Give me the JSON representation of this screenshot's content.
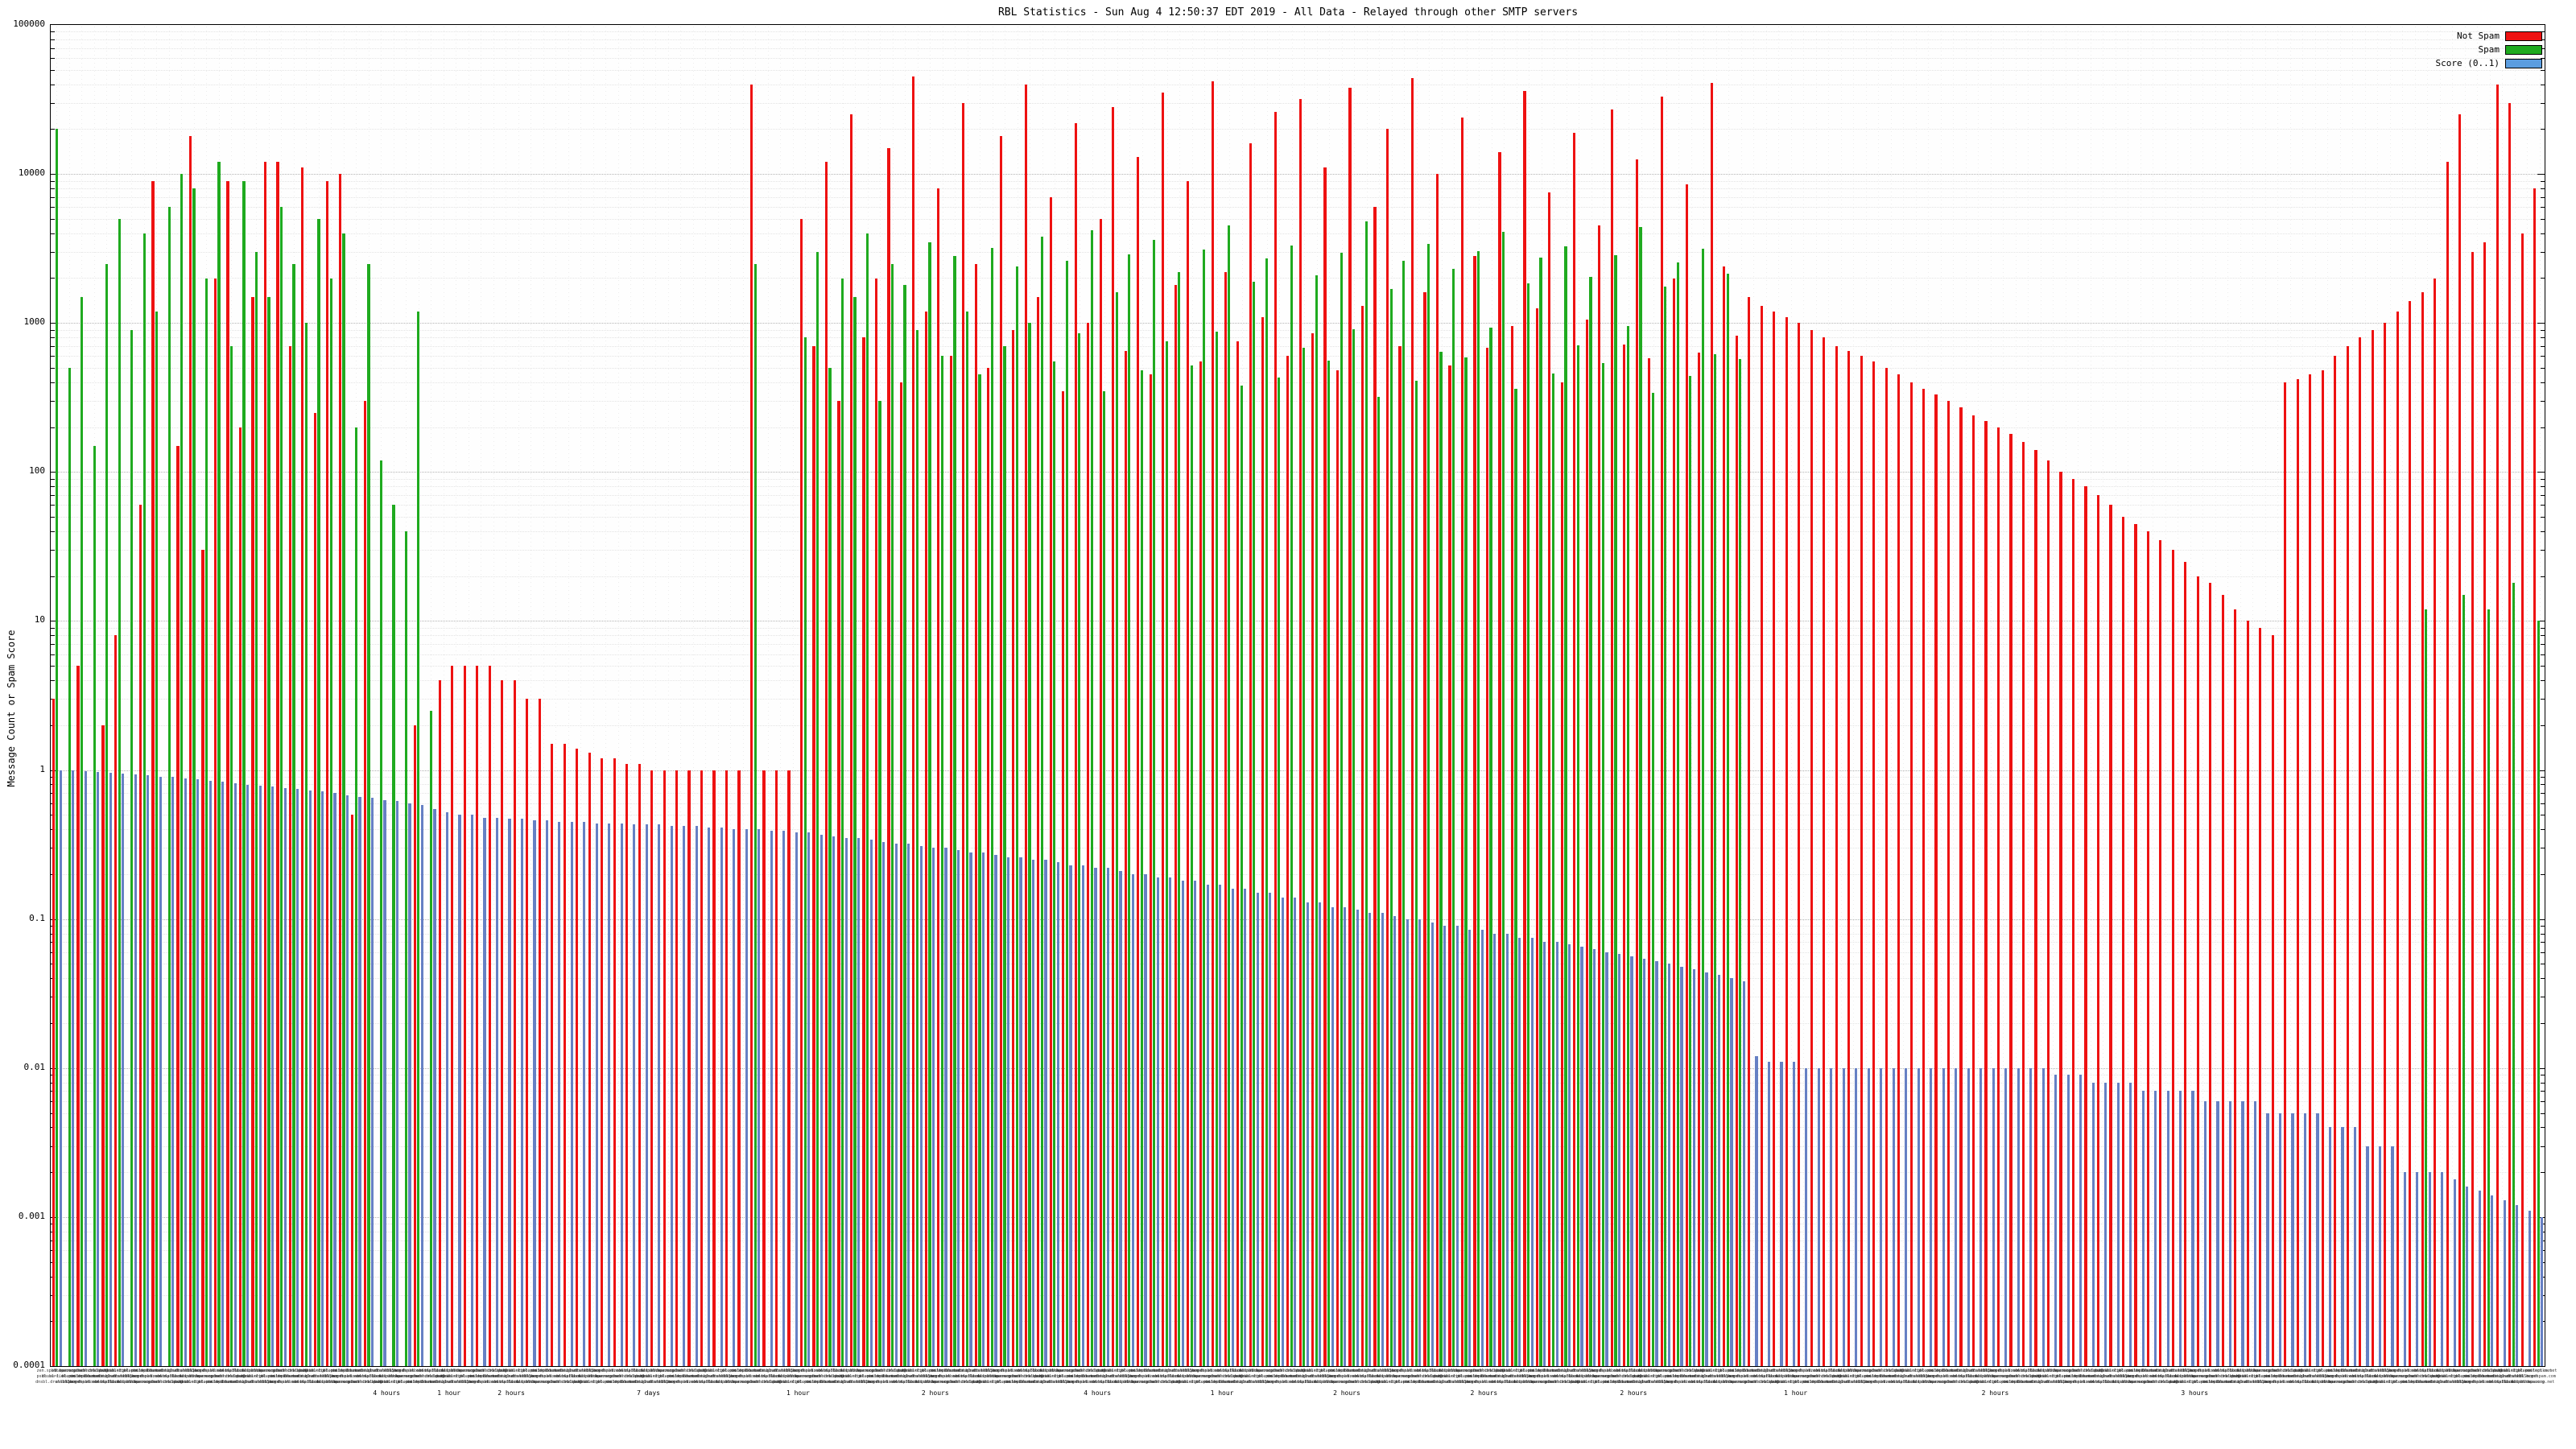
{
  "chart_data": {
    "type": "bar",
    "title": "RBL Statistics - Sun Aug 4 12:50:37 EDT 2019 - All Data - Relayed through other SMTP servers",
    "xlabel": "",
    "ylabel": "Message Count or Spam Score",
    "yscale": "log",
    "ylim": [
      0.0001,
      100000
    ],
    "grid": true,
    "legend_position": "top-right",
    "y_ticks": [
      "100000",
      "10000",
      "1000",
      "100",
      "10",
      "1",
      "0.1",
      "0.01",
      "0.001",
      "0.0001"
    ],
    "colors": {
      "not_spam": "#ee1111",
      "spam": "#1faa1f",
      "score": "#6680c4"
    },
    "legend": [
      {
        "label": "Not Spam",
        "color": "#ee1111"
      },
      {
        "label": "Spam",
        "color": "#1faa1f"
      },
      {
        "label": "Score (0..1)",
        "color": "#5b9de0"
      }
    ],
    "x_tick_labels_note": "hundreds of RBL hostname tick labels, rendered too small to be legible in source image",
    "x_tick_label_samples": [
      "zen.spamhaus.org",
      "bl.spamcop.net",
      "b.barracudacentral.org",
      "dnsbl.sorbs.net",
      "cbl.abuseat.org",
      "psbl.surriel.com",
      "dnsbl-1.uceprotect.net",
      "bl.mailspike.net",
      "ix.dnsbl.manitu.net",
      "truncate.gbudb.net",
      "dnsbl.dronebl.org",
      "all.s5h.net",
      "bl.nordspam.com",
      "spam.dnsbl.anonmails.de",
      "dnsbl.spfbl.net",
      "bl.blocklist.de"
    ],
    "x_period_labels": [
      {
        "pos": 0.135,
        "text": "4 hours"
      },
      {
        "pos": 0.16,
        "text": "1 hour"
      },
      {
        "pos": 0.185,
        "text": "2 hours"
      },
      {
        "pos": 0.24,
        "text": "7 days"
      },
      {
        "pos": 0.3,
        "text": "1 hour"
      },
      {
        "pos": 0.355,
        "text": "2 hours"
      },
      {
        "pos": 0.42,
        "text": "4 hours"
      },
      {
        "pos": 0.47,
        "text": "1 hour"
      },
      {
        "pos": 0.52,
        "text": "2 hours"
      },
      {
        "pos": 0.575,
        "text": "2 hours"
      },
      {
        "pos": 0.635,
        "text": "2 hours"
      },
      {
        "pos": 0.7,
        "text": "1 hour"
      },
      {
        "pos": 0.78,
        "text": "2 hours"
      },
      {
        "pos": 0.86,
        "text": "3 hours"
      }
    ],
    "series": [
      {
        "name": "Not Spam",
        "color_key": "not_spam",
        "values": [
          3,
          0,
          5,
          0,
          2,
          8,
          0,
          60,
          9000,
          0,
          150,
          18000,
          30,
          2000,
          9000,
          200,
          1500,
          12000,
          12000,
          700,
          11000,
          250,
          9000,
          10000,
          0.5,
          300,
          0,
          0,
          0,
          2,
          0,
          4,
          5,
          5,
          5,
          5,
          4,
          4,
          3,
          3,
          1.5,
          1.5,
          1.4,
          1.3,
          1.2,
          1.2,
          1.1,
          1.1,
          1,
          1,
          1,
          1,
          1,
          1,
          1,
          1,
          40000,
          1,
          1,
          1,
          5000,
          700,
          12000,
          300,
          25000,
          800,
          2000,
          15000,
          400,
          45000,
          1200,
          8000,
          600,
          30000,
          2500,
          500,
          18000,
          900,
          40000,
          1500,
          7000,
          350,
          22000,
          1000,
          5000,
          28000,
          650,
          13000,
          450,
          35000,
          1800,
          9000,
          550,
          42000,
          2200,
          750,
          16000,
          1100,
          26000,
          600,
          32000,
          850,
          11000,
          480,
          38000,
          1300,
          6000,
          20000,
          700,
          44000,
          1600,
          10000,
          520,
          24000,
          2800,
          680,
          14000,
          950,
          36000,
          1250,
          7500,
          400,
          19000,
          1050,
          4500,
          27000,
          720,
          12500,
          580,
          33000,
          2000,
          8500,
          630,
          41000,
          2400,
          820,
          1500,
          1300,
          1200,
          1100,
          1000,
          900,
          800,
          700,
          650,
          600,
          550,
          500,
          450,
          400,
          360,
          330,
          300,
          270,
          240,
          220,
          200,
          180,
          160,
          140,
          120,
          100,
          90,
          80,
          70,
          60,
          50,
          45,
          40,
          35,
          30,
          25,
          20,
          18,
          15,
          12,
          10,
          9,
          8,
          400,
          420,
          450,
          480,
          600,
          700,
          800,
          900,
          1000,
          1200,
          1400,
          1600,
          2000,
          12000,
          25000,
          3000,
          3500,
          40000,
          30000,
          4000,
          8000
        ]
      },
      {
        "name": "Spam",
        "color_key": "spam",
        "values": [
          20000,
          500,
          1500,
          150,
          2500,
          5000,
          900,
          4000,
          1200,
          6000,
          10000,
          8000,
          2000,
          12000,
          700,
          9000,
          3000,
          1500,
          6000,
          2500,
          1000,
          5000,
          2000,
          4000,
          200,
          2500,
          120,
          60,
          40,
          1200,
          2.5,
          0,
          0,
          0,
          0,
          0,
          0,
          0,
          0,
          0,
          0,
          0,
          0,
          0,
          0,
          0,
          0,
          0,
          0,
          0,
          0,
          0,
          0,
          0,
          0,
          0,
          2500,
          0,
          0,
          0,
          800,
          3000,
          500,
          2000,
          1500,
          4000,
          300,
          2500,
          1800,
          900,
          3500,
          600,
          2800,
          1200,
          450,
          3200,
          700,
          2400,
          1000,
          3800,
          550,
          2600,
          850,
          4200,
          350,
          1600,
          2900,
          480,
          3600,
          750,
          2200,
          520,
          3100,
          880,
          4500,
          380,
          1900,
          2700,
          430,
          3300,
          680,
          2100,
          560,
          2950,
          910,
          4800,
          320,
          1700,
          2600,
          410,
          3400,
          640,
          2300,
          590,
          3050,
          930,
          4100,
          360,
          1850,
          2750,
          460,
          3250,
          710,
          2050,
          540,
          2850,
          960,
          4400,
          340,
          1750,
          2550,
          440,
          3150,
          620,
          2150,
          570,
          0,
          0,
          0,
          0,
          0,
          0,
          0,
          0,
          0,
          0,
          0,
          0,
          0,
          0,
          0,
          0,
          0,
          0,
          0,
          0,
          0,
          0,
          0,
          0,
          0,
          0,
          0,
          0,
          0,
          0,
          0,
          0,
          0,
          0,
          0,
          0,
          0,
          0,
          0,
          0,
          0,
          0,
          0,
          0,
          0,
          0,
          0,
          0,
          0,
          0,
          0,
          0,
          0,
          0,
          12,
          0,
          0,
          15,
          0,
          12,
          0,
          18,
          0,
          10
        ]
      },
      {
        "name": "Score (0..1)",
        "color_key": "score",
        "values": [
          1.0,
          1.0,
          0.98,
          0.97,
          0.96,
          0.95,
          0.93,
          0.92,
          0.9,
          0.9,
          0.88,
          0.87,
          0.85,
          0.84,
          0.82,
          0.8,
          0.79,
          0.78,
          0.76,
          0.75,
          0.73,
          0.72,
          0.7,
          0.68,
          0.66,
          0.65,
          0.63,
          0.62,
          0.6,
          0.58,
          0.55,
          0.52,
          0.5,
          0.5,
          0.48,
          0.48,
          0.47,
          0.47,
          0.46,
          0.46,
          0.45,
          0.45,
          0.45,
          0.44,
          0.44,
          0.44,
          0.43,
          0.43,
          0.43,
          0.42,
          0.42,
          0.42,
          0.41,
          0.41,
          0.4,
          0.4,
          0.4,
          0.39,
          0.39,
          0.38,
          0.38,
          0.37,
          0.36,
          0.35,
          0.35,
          0.34,
          0.33,
          0.32,
          0.32,
          0.31,
          0.3,
          0.3,
          0.29,
          0.28,
          0.28,
          0.27,
          0.26,
          0.26,
          0.25,
          0.25,
          0.24,
          0.23,
          0.23,
          0.22,
          0.22,
          0.21,
          0.2,
          0.2,
          0.19,
          0.19,
          0.18,
          0.18,
          0.17,
          0.17,
          0.16,
          0.16,
          0.15,
          0.15,
          0.14,
          0.14,
          0.13,
          0.13,
          0.12,
          0.12,
          0.115,
          0.11,
          0.11,
          0.105,
          0.1,
          0.1,
          0.095,
          0.09,
          0.09,
          0.085,
          0.085,
          0.08,
          0.08,
          0.075,
          0.075,
          0.07,
          0.07,
          0.068,
          0.065,
          0.063,
          0.06,
          0.058,
          0.056,
          0.054,
          0.052,
          0.05,
          0.048,
          0.046,
          0.044,
          0.042,
          0.04,
          0.038,
          0.012,
          0.011,
          0.011,
          0.011,
          0.01,
          0.01,
          0.01,
          0.01,
          0.01,
          0.01,
          0.01,
          0.01,
          0.01,
          0.01,
          0.01,
          0.01,
          0.01,
          0.01,
          0.01,
          0.01,
          0.01,
          0.01,
          0.01,
          0.01,
          0.009,
          0.009,
          0.009,
          0.008,
          0.008,
          0.008,
          0.008,
          0.007,
          0.007,
          0.007,
          0.007,
          0.007,
          0.006,
          0.006,
          0.006,
          0.006,
          0.006,
          0.005,
          0.005,
          0.005,
          0.005,
          0.005,
          0.004,
          0.004,
          0.004,
          0.003,
          0.003,
          0.003,
          0.002,
          0.002,
          0.002,
          0.002,
          0.0018,
          0.0016,
          0.0015,
          0.0014,
          0.0013,
          0.0012,
          0.0011,
          0.001
        ]
      }
    ]
  }
}
